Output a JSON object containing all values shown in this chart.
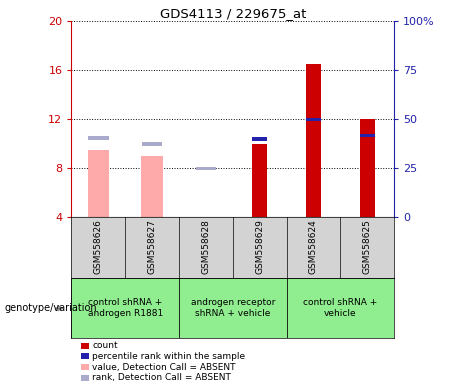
{
  "title": "GDS4113 / 229675_at",
  "samples": [
    "GSM558626",
    "GSM558627",
    "GSM558628",
    "GSM558629",
    "GSM558624",
    "GSM558625"
  ],
  "count_values": [
    null,
    null,
    null,
    10.0,
    16.5,
    12.0
  ],
  "count_color": "#CC0000",
  "percentile_values": [
    null,
    null,
    null,
    10.2,
    11.8,
    10.5
  ],
  "percentile_color": "#2222AA",
  "absent_value_values": [
    9.5,
    9.0,
    null,
    null,
    null,
    null
  ],
  "absent_value_color": "#FFAAAA",
  "absent_rank_values": [
    10.3,
    9.8,
    7.8,
    null,
    null,
    null
  ],
  "absent_rank_color": "#AAAACC",
  "ylim_left": [
    4,
    20
  ],
  "ylim_right": [
    0,
    100
  ],
  "yticks_left": [
    4,
    8,
    12,
    16,
    20
  ],
  "yticks_right": [
    0,
    25,
    50,
    75,
    100
  ],
  "ytick_labels_left": [
    "4",
    "8",
    "12",
    "16",
    "20"
  ],
  "ytick_labels_right": [
    "0",
    "25",
    "50",
    "75",
    "100%"
  ],
  "bar_base": 4.0,
  "group_data": [
    {
      "label": "control shRNA +\nandrogen R1881",
      "color": "#90EE90",
      "xmin": -0.5,
      "xmax": 1.5
    },
    {
      "label": "androgen receptor\nshRNA + vehicle",
      "color": "#90EE90",
      "xmin": 1.5,
      "xmax": 3.5
    },
    {
      "label": "control shRNA +\nvehicle",
      "color": "#90EE90",
      "xmin": 3.5,
      "xmax": 5.5
    }
  ],
  "sample_bg_color": "#D3D3D3",
  "legend_items": [
    {
      "label": "count",
      "color": "#CC0000"
    },
    {
      "label": "percentile rank within the sample",
      "color": "#2222AA"
    },
    {
      "label": "value, Detection Call = ABSENT",
      "color": "#FFAAAA"
    },
    {
      "label": "rank, Detection Call = ABSENT",
      "color": "#AAAACC"
    }
  ],
  "genotype_label": "genotype/variation"
}
